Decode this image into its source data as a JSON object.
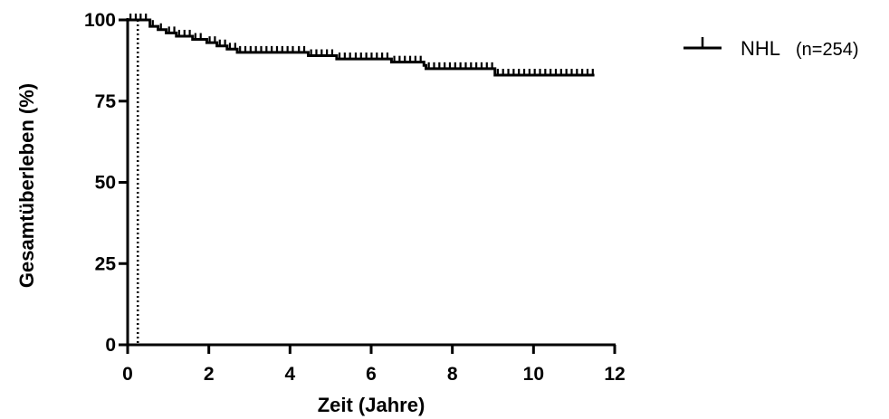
{
  "chart_data": {
    "type": "line",
    "title": "",
    "xlabel": "Zeit (Jahre)",
    "ylabel": "Gesamtüberleben (%)",
    "xlim": [
      0,
      12
    ],
    "ylim": [
      0,
      100
    ],
    "x_ticks": [
      0,
      2,
      4,
      6,
      8,
      10,
      12
    ],
    "y_ticks": [
      0,
      25,
      50,
      75,
      100
    ],
    "grid": false,
    "legend_position": "top-right",
    "reference_line": {
      "x": 0.25,
      "style": "dotted"
    },
    "series": [
      {
        "name": "NHL",
        "legend_suffix": "(n=254)",
        "step": true,
        "censored_marks": true,
        "points": [
          [
            0.0,
            100
          ],
          [
            0.25,
            100
          ],
          [
            0.55,
            98
          ],
          [
            0.75,
            97
          ],
          [
            0.95,
            96
          ],
          [
            1.2,
            95
          ],
          [
            1.6,
            94
          ],
          [
            1.95,
            93
          ],
          [
            2.2,
            92
          ],
          [
            2.45,
            91
          ],
          [
            2.7,
            90
          ],
          [
            4.15,
            90
          ],
          [
            4.45,
            89
          ],
          [
            5.15,
            88
          ],
          [
            5.55,
            88
          ],
          [
            6.5,
            87
          ],
          [
            7.3,
            87
          ],
          [
            7.3,
            86
          ],
          [
            7.35,
            85
          ],
          [
            9.05,
            85
          ],
          [
            9.05,
            83
          ],
          [
            11.5,
            83
          ]
        ]
      }
    ]
  }
}
